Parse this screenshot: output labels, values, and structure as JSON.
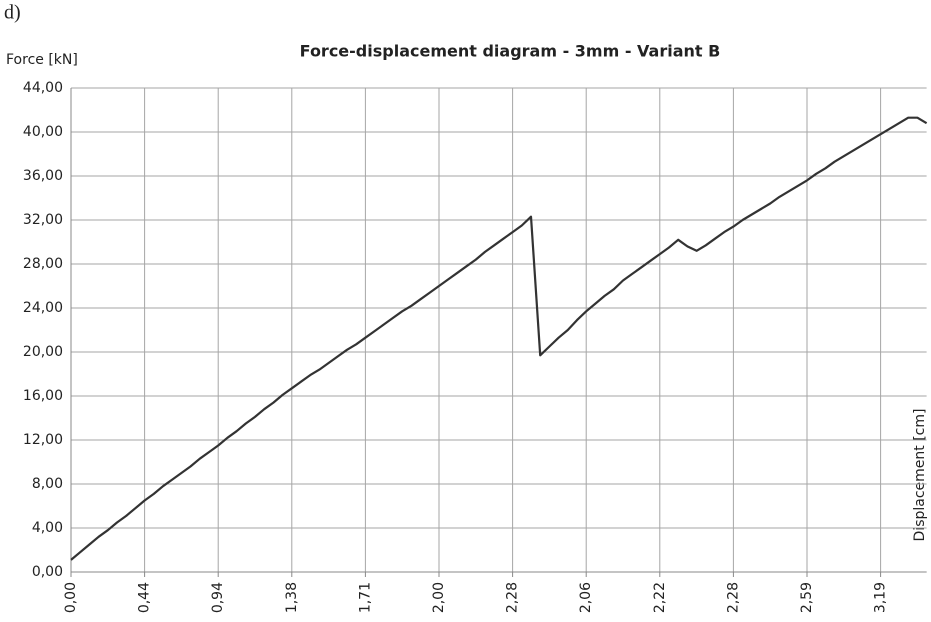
{
  "label": "d)",
  "chart_data": {
    "type": "line",
    "title": "Force-displacement diagram - 3mm - Variant B",
    "y_label": "Force [kN]",
    "x_label": "Displacement [cm]",
    "categories": [
      "0,00",
      null,
      null,
      null,
      null,
      null,
      null,
      null,
      "0,44",
      null,
      null,
      null,
      null,
      null,
      null,
      null,
      "0,94",
      null,
      null,
      null,
      null,
      null,
      null,
      null,
      "1,38",
      null,
      null,
      null,
      null,
      null,
      null,
      null,
      "1,71",
      null,
      null,
      null,
      null,
      null,
      null,
      null,
      "2,00",
      null,
      null,
      null,
      null,
      null,
      null,
      null,
      "2,28",
      null,
      null,
      null,
      null,
      null,
      null,
      null,
      "2,06",
      null,
      null,
      null,
      null,
      null,
      null,
      null,
      "2,22",
      null,
      null,
      null,
      null,
      null,
      null,
      null,
      "2,28",
      null,
      null,
      null,
      null,
      null,
      null,
      null,
      "2,59",
      null,
      null,
      null,
      null,
      null,
      null,
      null,
      "3,19",
      null,
      null,
      null,
      null,
      null
    ],
    "series": [
      {
        "color": "#333333",
        "values": [
          1.1,
          1.8,
          2.5,
          3.2,
          3.8,
          4.5,
          5.1,
          5.8,
          6.5,
          7.1,
          7.8,
          8.4,
          9.0,
          9.6,
          10.3,
          10.9,
          11.5,
          12.2,
          12.8,
          13.5,
          14.1,
          14.8,
          15.4,
          16.1,
          16.7,
          17.3,
          17.9,
          18.4,
          19.0,
          19.6,
          20.2,
          20.7,
          21.3,
          21.9,
          22.5,
          23.1,
          23.7,
          24.2,
          24.8,
          25.4,
          26.0,
          26.6,
          27.2,
          27.8,
          28.4,
          29.1,
          29.7,
          30.3,
          30.9,
          31.5,
          32.3,
          19.7,
          20.5,
          21.3,
          22.0,
          22.9,
          23.7,
          24.4,
          25.1,
          25.7,
          26.5,
          27.1,
          27.7,
          28.3,
          28.9,
          29.5,
          30.2,
          29.6,
          29.2,
          29.7,
          30.3,
          30.9,
          31.4,
          32.0,
          32.5,
          33.0,
          33.5,
          34.1,
          34.6,
          35.1,
          35.6,
          36.2,
          36.7,
          37.3,
          37.8,
          38.3,
          38.8,
          39.3,
          39.8,
          40.3,
          40.8,
          41.3,
          41.3,
          40.8
        ]
      }
    ],
    "ylim": [
      0,
      44
    ],
    "yticks": [
      {
        "value": 0,
        "label": "0,00"
      },
      {
        "value": 4,
        "label": "4,00"
      },
      {
        "value": 8,
        "label": "8,00"
      },
      {
        "value": 12,
        "label": "12,00"
      },
      {
        "value": 16,
        "label": "16,00"
      },
      {
        "value": 20,
        "label": "20,00"
      },
      {
        "value": 24,
        "label": "24,00"
      },
      {
        "value": 28,
        "label": "28,00"
      },
      {
        "value": 32,
        "label": "32,00"
      },
      {
        "value": 36,
        "label": "36,00"
      },
      {
        "value": 40,
        "label": "40,00"
      },
      {
        "value": 44,
        "label": "44,00"
      }
    ],
    "grid": true
  }
}
